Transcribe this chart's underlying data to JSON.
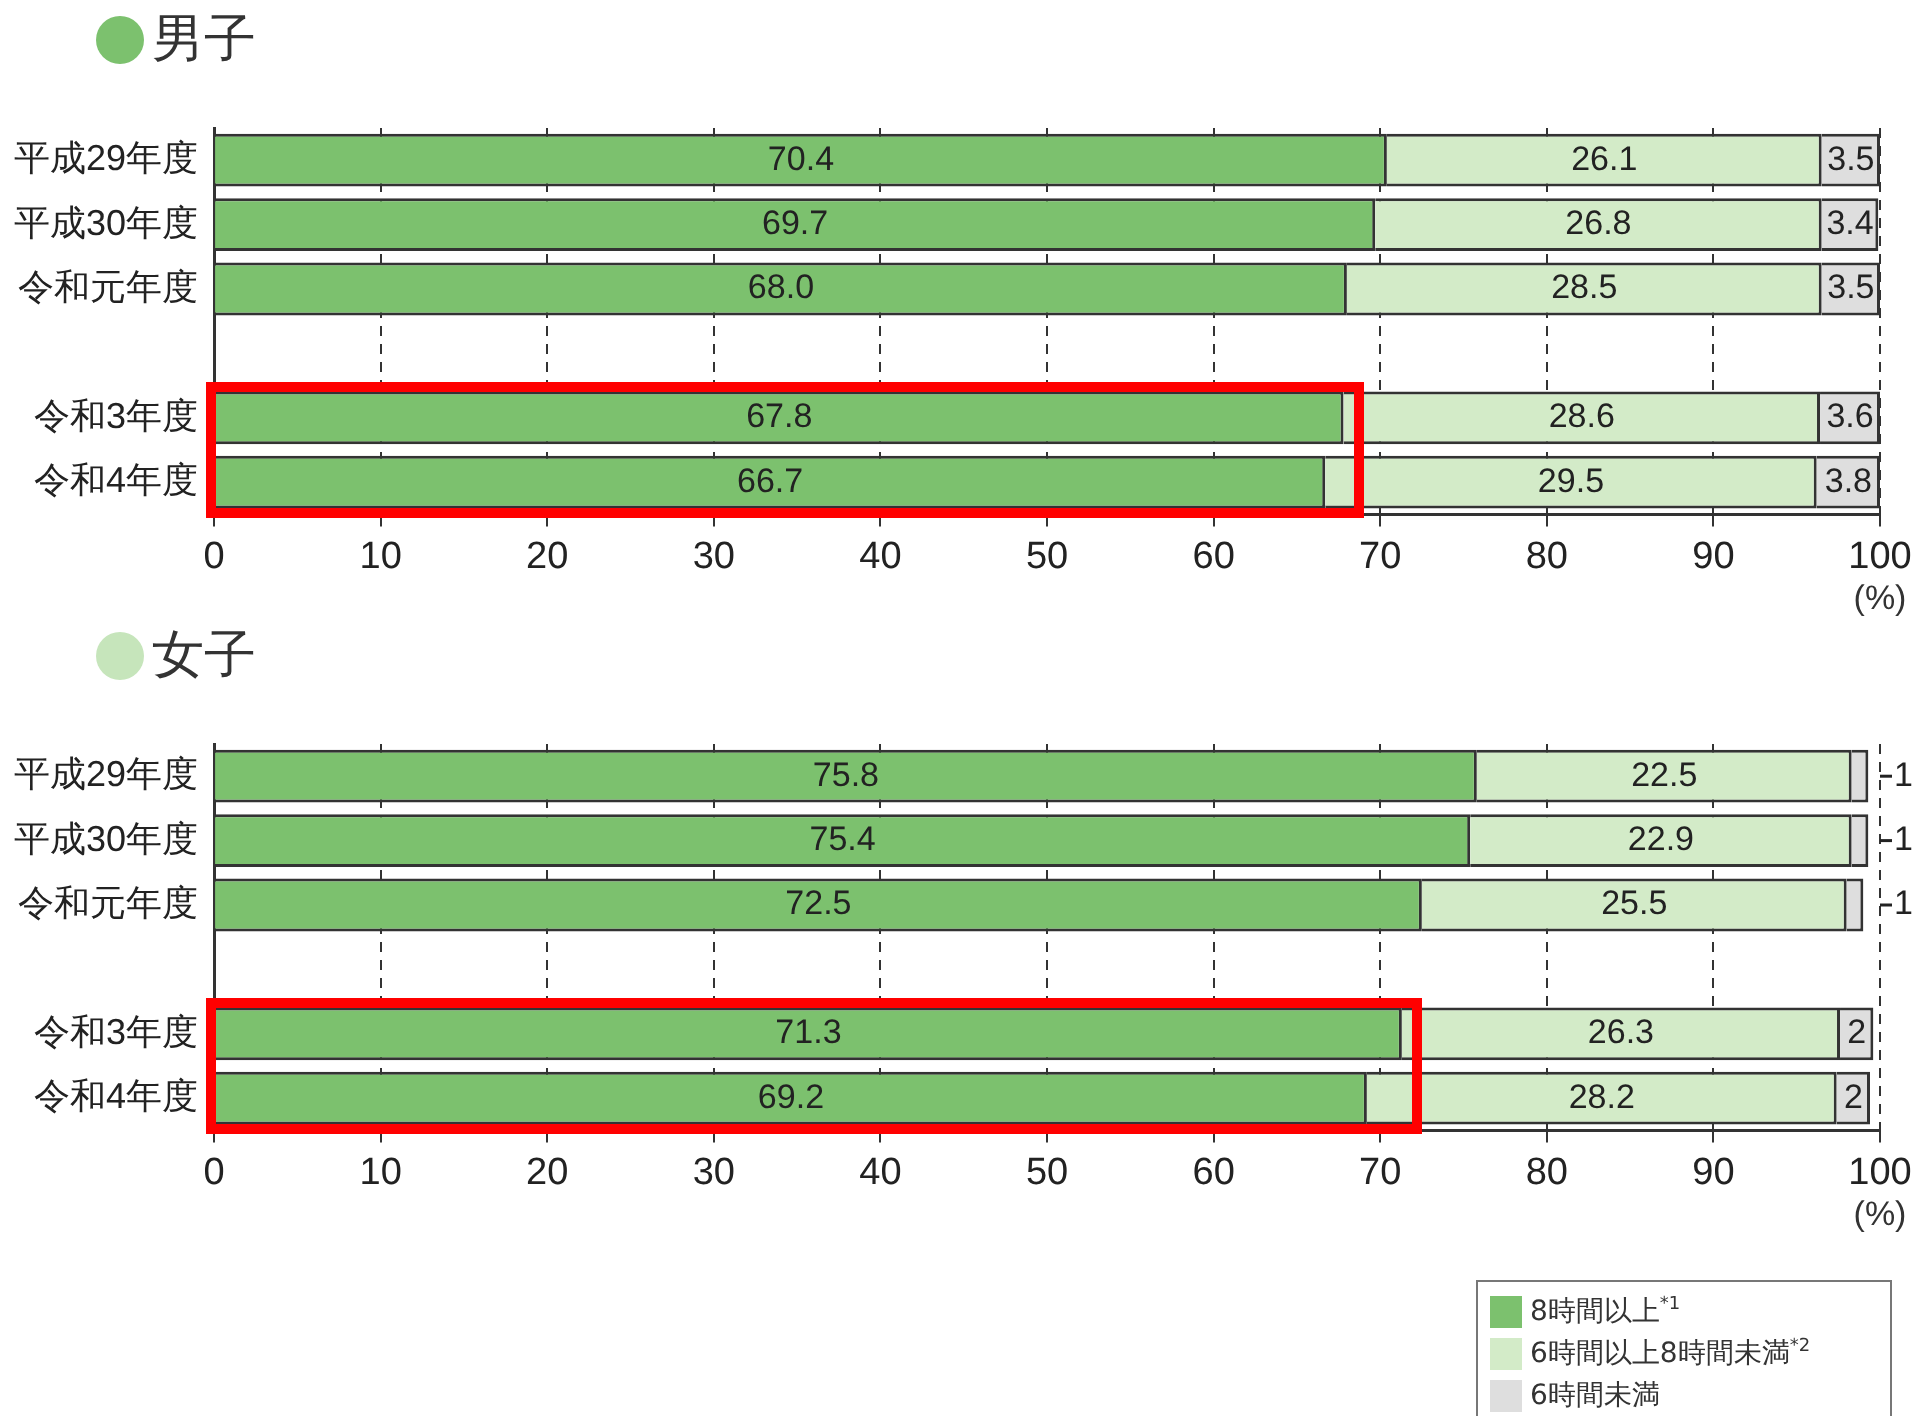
{
  "chart_data": [
    {
      "type": "bar",
      "title": "男子",
      "orientation": "horizontal",
      "stacked": true,
      "categories": [
        "平成29年度",
        "平成30年度",
        "令和元年度",
        null,
        "令和3年度",
        "令和4年度"
      ],
      "series": [
        {
          "color": "#7cc16e",
          "values": [
            70.4,
            69.7,
            68.0,
            null,
            67.8,
            66.7
          ],
          "value_labels": [
            "70.4",
            "69.7",
            "68.0",
            null,
            "67.8",
            "66.7"
          ]
        },
        {
          "color": "#d3ebc8",
          "values": [
            26.1,
            26.8,
            28.5,
            null,
            28.6,
            29.5
          ]
        },
        {
          "color": "#dedede",
          "values": [
            3.5,
            3.4,
            3.5,
            null,
            3.6,
            3.8
          ]
        }
      ],
      "xlabel": "(%)",
      "xlim": [
        0,
        100
      ],
      "xticks": [
        0,
        10,
        20,
        30,
        40,
        50,
        60,
        70,
        80,
        90,
        100
      ],
      "grid": "x",
      "data_labels": true,
      "legend": false
    },
    {
      "type": "bar",
      "title": "女子",
      "orientation": "horizontal",
      "stacked": true,
      "categories": [
        "平成29年度",
        "平成30年度",
        "令和元年度",
        null,
        "令和3年度",
        "令和4年度"
      ],
      "series": [
        {
          "name": "8時間以上$^{*1}$",
          "color": "#7cc16e",
          "values": [
            75.8,
            75.4,
            72.5,
            null,
            71.3,
            69.2
          ]
        },
        {
          "name": "6時間以上8時間未満$^{*2}$",
          "color": "#d3ebc8",
          "values": [
            22.5,
            22.9,
            25.5,
            null,
            26.3,
            28.2
          ]
        },
        {
          "name": "6時間未満",
          "color": "#dedede",
          "values": [
            1,
            1,
            1,
            null,
            2,
            2
          ]
        }
      ],
      "xlabel": "(%)",
      "xlim": [
        0,
        100
      ],
      "xticks": [
        0,
        10,
        20,
        30,
        40,
        50,
        60,
        70,
        80,
        90,
        100
      ],
      "grid": "x",
      "data_labels": true,
      "legend": "bottom right"
    }
  ]
}
